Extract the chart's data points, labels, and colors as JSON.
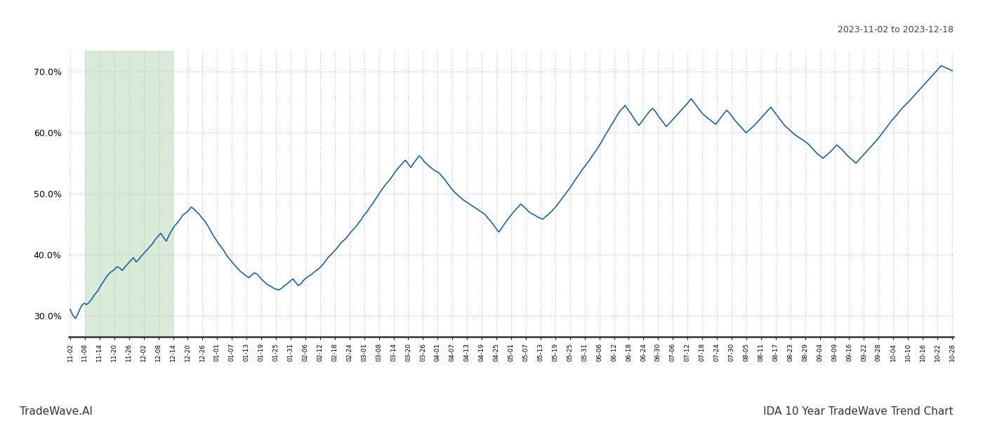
{
  "title_top_right": "2023-11-02 to 2023-12-18",
  "title_bottom": "IDA 10 Year TradeWave Trend Chart",
  "watermark_left": "TradeWave.AI",
  "line_color": "#2060a0",
  "background_color": "#ffffff",
  "grid_color": "#bbbbbb",
  "highlight_color": "#d8ead8",
  "ylim": [
    0.265,
    0.735
  ],
  "yticks": [
    0.3,
    0.4,
    0.5,
    0.6,
    0.7
  ],
  "x_labels": [
    "11-02",
    "11-08",
    "11-14",
    "11-20",
    "11-26",
    "12-02",
    "12-08",
    "12-14",
    "12-20",
    "12-26",
    "01-01",
    "01-07",
    "01-13",
    "01-19",
    "01-25",
    "01-31",
    "02-06",
    "02-12",
    "02-18",
    "02-24",
    "03-01",
    "03-08",
    "03-14",
    "03-20",
    "03-26",
    "04-01",
    "04-07",
    "04-13",
    "04-19",
    "04-25",
    "05-01",
    "05-07",
    "05-13",
    "05-19",
    "05-25",
    "05-31",
    "06-06",
    "06-12",
    "06-18",
    "06-24",
    "06-30",
    "07-06",
    "07-12",
    "07-18",
    "07-24",
    "07-30",
    "08-05",
    "08-11",
    "08-17",
    "08-23",
    "08-29",
    "09-04",
    "09-09",
    "09-16",
    "09-22",
    "09-28",
    "10-04",
    "10-10",
    "10-16",
    "10-22",
    "10-28"
  ],
  "highlight_x_start_label": "11-08",
  "highlight_x_end_label": "12-14",
  "values": [
    0.31,
    0.3,
    0.295,
    0.305,
    0.315,
    0.32,
    0.318,
    0.322,
    0.328,
    0.335,
    0.34,
    0.348,
    0.355,
    0.362,
    0.368,
    0.372,
    0.375,
    0.38,
    0.378,
    0.374,
    0.38,
    0.385,
    0.39,
    0.395,
    0.388,
    0.392,
    0.398,
    0.403,
    0.408,
    0.413,
    0.418,
    0.425,
    0.43,
    0.435,
    0.428,
    0.422,
    0.432,
    0.44,
    0.447,
    0.452,
    0.458,
    0.465,
    0.468,
    0.472,
    0.478,
    0.475,
    0.47,
    0.466,
    0.46,
    0.455,
    0.448,
    0.44,
    0.432,
    0.425,
    0.418,
    0.412,
    0.406,
    0.398,
    0.393,
    0.387,
    0.382,
    0.377,
    0.372,
    0.369,
    0.365,
    0.362,
    0.366,
    0.37,
    0.368,
    0.363,
    0.358,
    0.354,
    0.35,
    0.348,
    0.345,
    0.343,
    0.342,
    0.345,
    0.349,
    0.352,
    0.356,
    0.36,
    0.355,
    0.349,
    0.352,
    0.358,
    0.362,
    0.365,
    0.368,
    0.372,
    0.375,
    0.379,
    0.384,
    0.39,
    0.396,
    0.4,
    0.405,
    0.41,
    0.416,
    0.421,
    0.425,
    0.43,
    0.436,
    0.441,
    0.446,
    0.452,
    0.458,
    0.465,
    0.47,
    0.477,
    0.483,
    0.49,
    0.497,
    0.504,
    0.51,
    0.516,
    0.521,
    0.527,
    0.534,
    0.54,
    0.545,
    0.55,
    0.555,
    0.549,
    0.543,
    0.55,
    0.556,
    0.562,
    0.558,
    0.552,
    0.548,
    0.544,
    0.54,
    0.537,
    0.535,
    0.53,
    0.525,
    0.519,
    0.513,
    0.507,
    0.502,
    0.498,
    0.494,
    0.49,
    0.487,
    0.484,
    0.481,
    0.478,
    0.475,
    0.472,
    0.469,
    0.466,
    0.46,
    0.455,
    0.449,
    0.443,
    0.437,
    0.443,
    0.45,
    0.456,
    0.462,
    0.468,
    0.473,
    0.478,
    0.483,
    0.479,
    0.475,
    0.47,
    0.467,
    0.465,
    0.462,
    0.46,
    0.458,
    0.462,
    0.466,
    0.47,
    0.475,
    0.48,
    0.486,
    0.492,
    0.498,
    0.504,
    0.51,
    0.517,
    0.524,
    0.53,
    0.537,
    0.543,
    0.549,
    0.555,
    0.562,
    0.568,
    0.575,
    0.582,
    0.59,
    0.598,
    0.605,
    0.613,
    0.62,
    0.628,
    0.635,
    0.64,
    0.645,
    0.638,
    0.632,
    0.625,
    0.618,
    0.612,
    0.618,
    0.624,
    0.63,
    0.636,
    0.64,
    0.635,
    0.628,
    0.622,
    0.616,
    0.61,
    0.615,
    0.62,
    0.625,
    0.63,
    0.635,
    0.64,
    0.645,
    0.65,
    0.656,
    0.65,
    0.644,
    0.638,
    0.632,
    0.628,
    0.624,
    0.621,
    0.617,
    0.614,
    0.62,
    0.626,
    0.632,
    0.637,
    0.632,
    0.626,
    0.62,
    0.615,
    0.61,
    0.605,
    0.6,
    0.604,
    0.608,
    0.612,
    0.617,
    0.622,
    0.627,
    0.632,
    0.637,
    0.642,
    0.636,
    0.63,
    0.624,
    0.618,
    0.612,
    0.608,
    0.604,
    0.6,
    0.596,
    0.593,
    0.59,
    0.587,
    0.584,
    0.58,
    0.575,
    0.57,
    0.565,
    0.562,
    0.558,
    0.562,
    0.566,
    0.57,
    0.575,
    0.58,
    0.576,
    0.572,
    0.567,
    0.562,
    0.558,
    0.554,
    0.55,
    0.555,
    0.56,
    0.565,
    0.57,
    0.575,
    0.58,
    0.585,
    0.59,
    0.596,
    0.602,
    0.608,
    0.614,
    0.62,
    0.625,
    0.63,
    0.636,
    0.641,
    0.646,
    0.65,
    0.655,
    0.66,
    0.665,
    0.67,
    0.675,
    0.68,
    0.685,
    0.69,
    0.695,
    0.7,
    0.705,
    0.71,
    0.708,
    0.706,
    0.704,
    0.702
  ]
}
